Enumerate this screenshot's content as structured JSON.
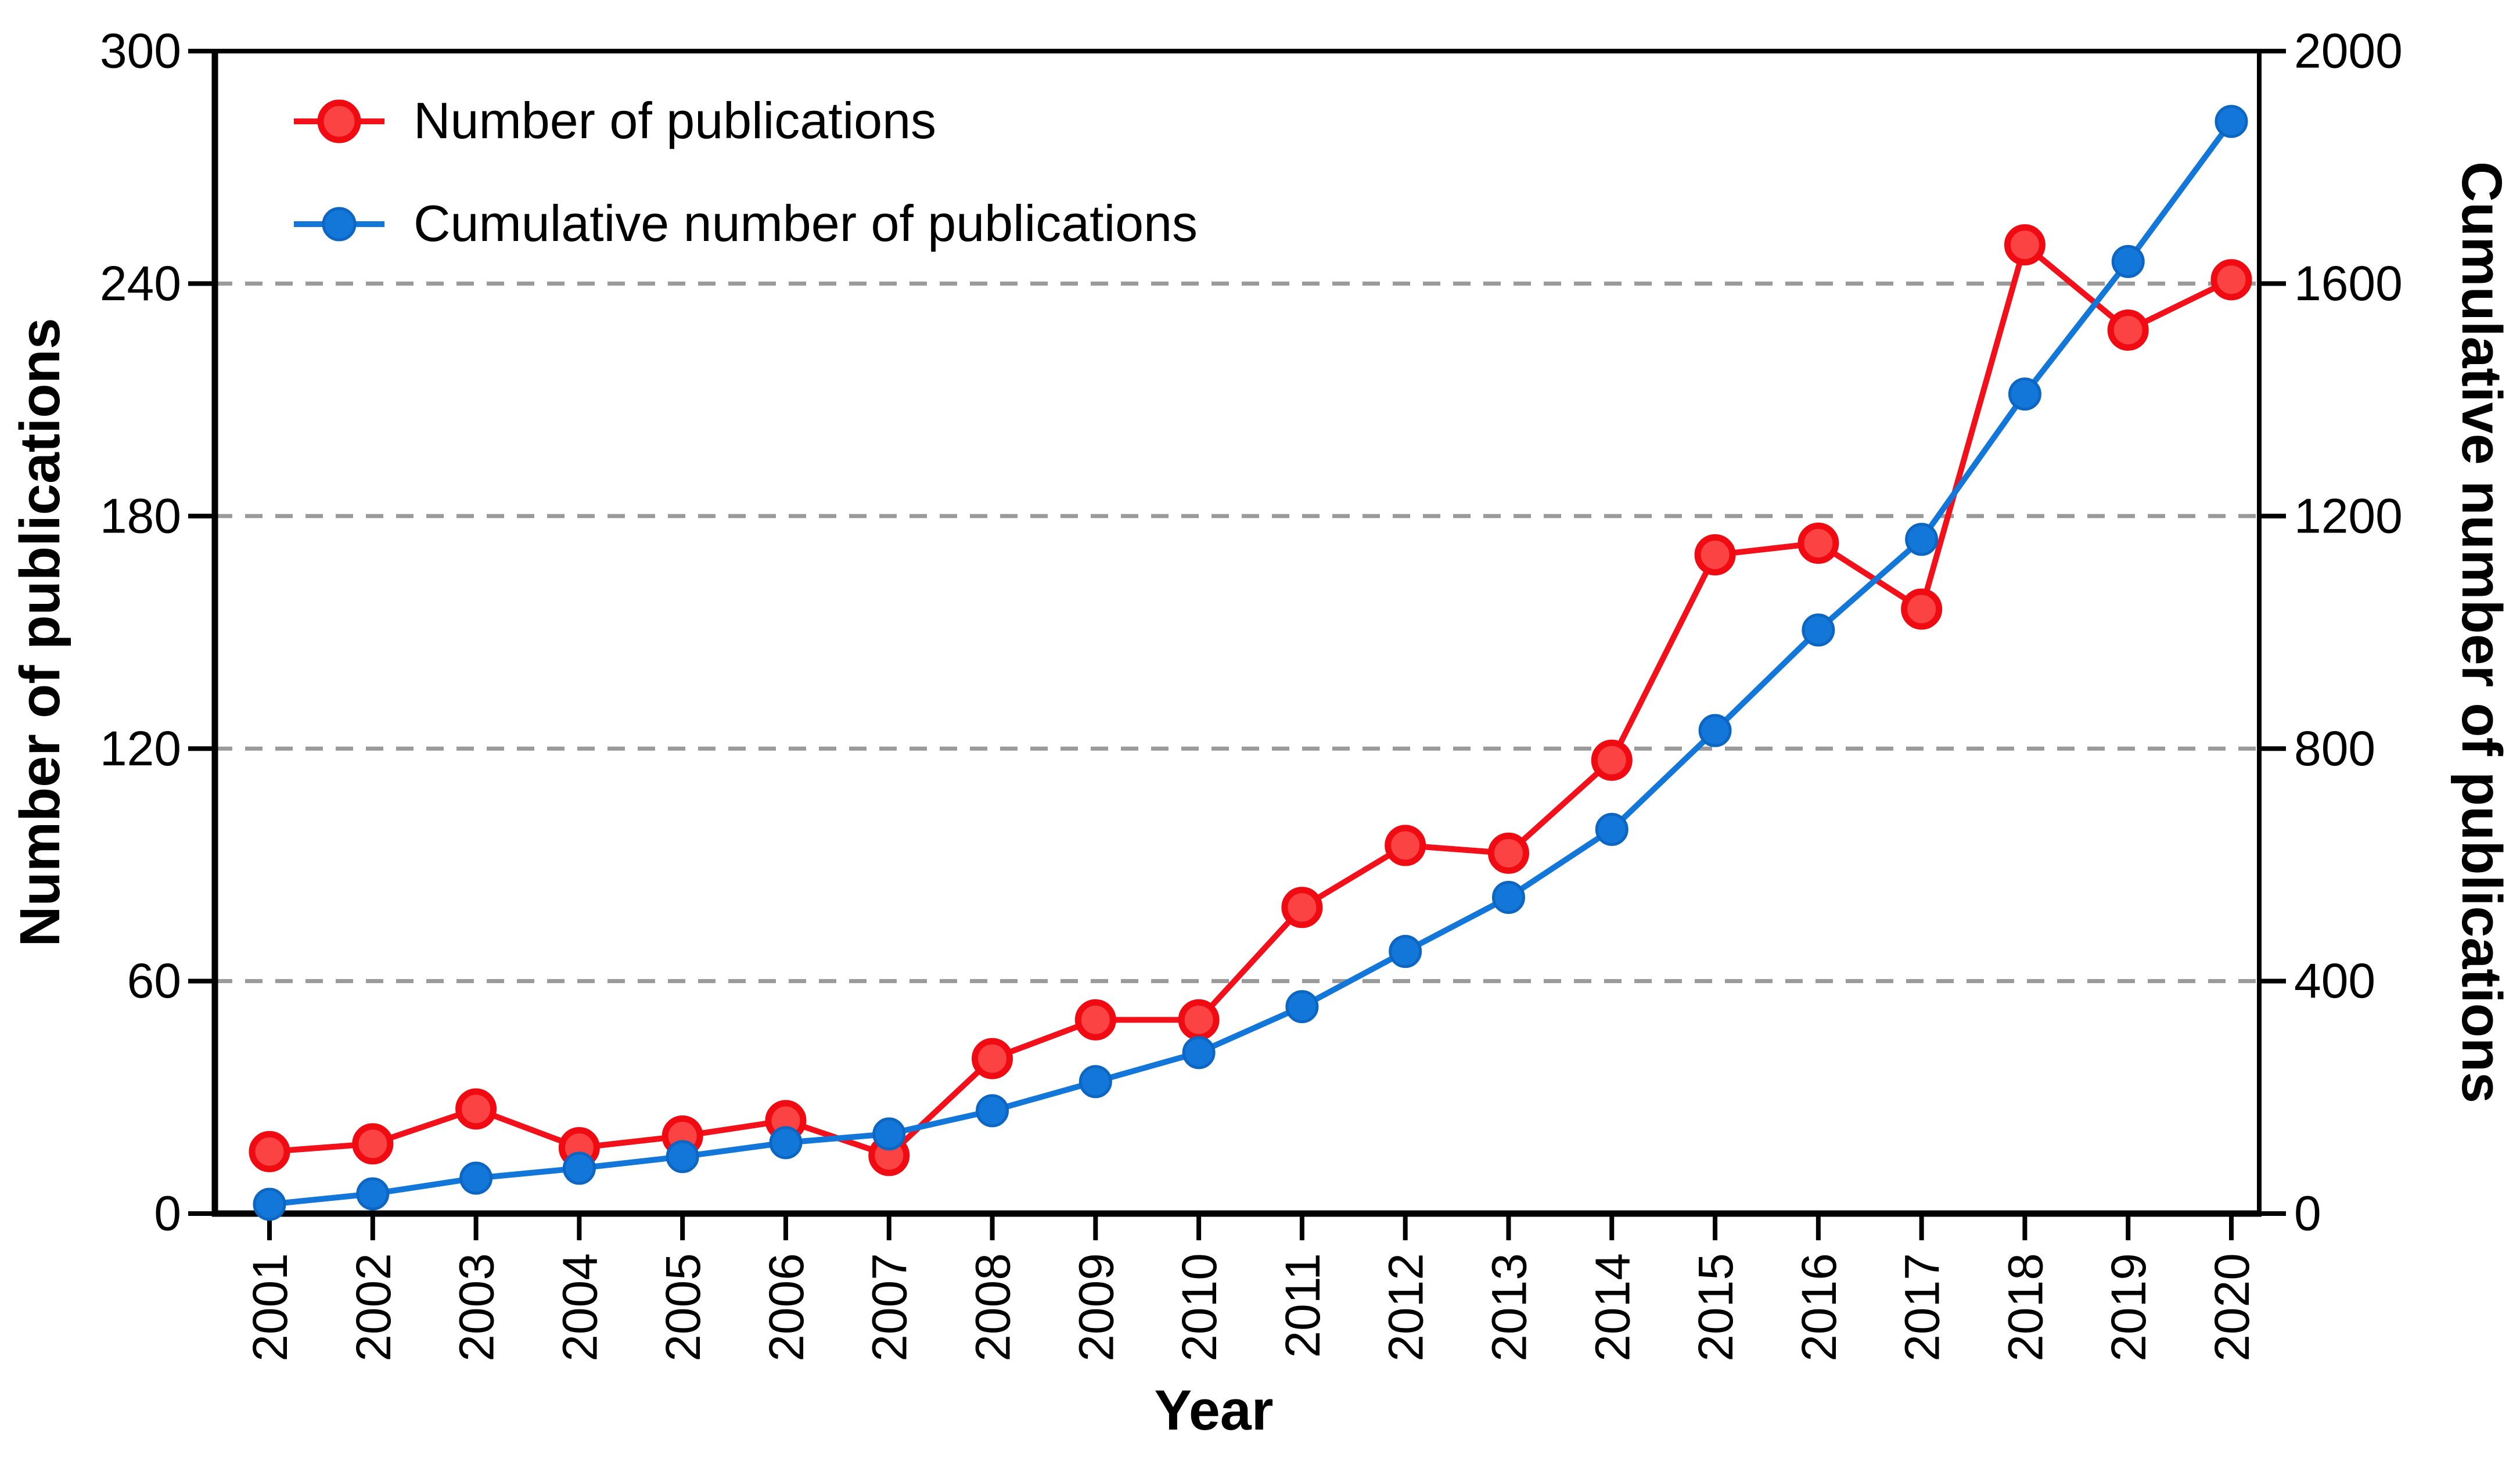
{
  "chart_data": {
    "type": "line",
    "title": "",
    "xlabel": "Year",
    "x": [
      "2001",
      "2002",
      "2003",
      "2004",
      "2005",
      "2006",
      "2007",
      "2008",
      "2009",
      "2010",
      "2011",
      "2012",
      "2013",
      "2014",
      "2015",
      "2016",
      "2017",
      "2018",
      "2019",
      "2020"
    ],
    "series": [
      {
        "name": "Number of publications",
        "yaxis": "left",
        "line_color": "#f2111b",
        "marker_fill": "#fb4343",
        "marker_stroke": "#f00a12",
        "values": [
          16,
          18,
          27,
          17,
          20,
          24,
          15,
          40,
          50,
          50,
          79,
          95,
          93,
          117,
          170,
          173,
          156,
          250,
          228,
          241
        ]
      },
      {
        "name": "Cumulative number of publications",
        "yaxis": "right",
        "line_color": "#1277d9",
        "marker_fill": "#1277d9",
        "marker_stroke": "#0d67c2",
        "values": [
          16,
          34,
          61,
          78,
          98,
          122,
          137,
          177,
          227,
          277,
          356,
          451,
          544,
          661,
          831,
          1004,
          1160,
          1410,
          1638,
          1879
        ]
      }
    ],
    "left_axis": {
      "label": "Number of publications",
      "range": [
        0,
        300
      ],
      "ticks": [
        "0",
        "60",
        "120",
        "180",
        "240",
        "300"
      ]
    },
    "right_axis": {
      "label": "Cumulative number of publications",
      "range": [
        0,
        2000
      ],
      "ticks": [
        "0",
        "400",
        "800",
        "1200",
        "1600",
        "2000"
      ]
    },
    "grid": {
      "left_values": [
        60,
        120,
        180,
        240
      ],
      "style": "dashed",
      "color": "#9a9a9a"
    },
    "legend": {
      "position": "top-left"
    },
    "frame_color": "#000000",
    "background": "#ffffff"
  }
}
